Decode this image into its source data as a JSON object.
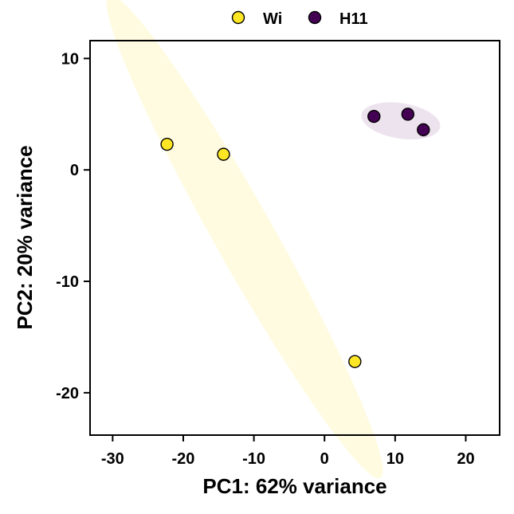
{
  "chart_data": {
    "type": "scatter",
    "xlabel": "PC1: 62% variance",
    "ylabel": "PC2: 20% variance",
    "xlim": [
      -33.2,
      24.8
    ],
    "ylim": [
      -23.8,
      11.6
    ],
    "xticks": [
      -30,
      -20,
      -10,
      0,
      10,
      20
    ],
    "yticks": [
      -20,
      -10,
      0,
      10
    ],
    "grid": false,
    "legend_position": "top",
    "series": [
      {
        "name": "Wi",
        "color": "#FDE725",
        "ellipse_color": "#FFFBE0",
        "points": [
          {
            "x": -22.3,
            "y": 2.3
          },
          {
            "x": -14.3,
            "y": 1.4
          },
          {
            "x": 4.3,
            "y": -17.2
          }
        ],
        "ellipse": {
          "cx": -11.3,
          "cy": -6.0,
          "rx": 29.0,
          "ry": 3.6,
          "angle_deg": -48
        }
      },
      {
        "name": "H11",
        "color": "#440154",
        "ellipse_color": "#EDE3EE",
        "points": [
          {
            "x": 7.0,
            "y": 4.8
          },
          {
            "x": 11.8,
            "y": 5.0
          },
          {
            "x": 14.0,
            "y": 3.6
          }
        ],
        "ellipse": {
          "cx": 10.8,
          "cy": 4.4,
          "rx": 5.6,
          "ry": 1.6,
          "angle_deg": -5
        }
      }
    ]
  }
}
